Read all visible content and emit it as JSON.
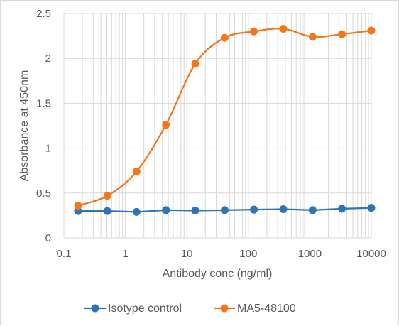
{
  "chart_data": {
    "type": "line",
    "title": "",
    "xlabel": "Antibody conc (ng/ml)",
    "ylabel": "Absorbance at 450nm",
    "x_scale": "log",
    "xlim": [
      0.1,
      10000
    ],
    "ylim": [
      0,
      2.5
    ],
    "x_ticks": [
      "0.1",
      "1",
      "10",
      "100",
      "1000",
      "10000"
    ],
    "y_ticks": [
      "0",
      "0.5",
      "1",
      "1.5",
      "2",
      "2.5"
    ],
    "grid": true,
    "legend_position": "bottom",
    "x": [
      0.17,
      0.51,
      1.52,
      4.57,
      13.7,
      41.2,
      123,
      370,
      1111,
      3333,
      10000
    ],
    "series": [
      {
        "name": "Isotype control",
        "color": "#2e75b6",
        "smooth": false,
        "values": [
          0.3,
          0.3,
          0.29,
          0.31,
          0.305,
          0.31,
          0.315,
          0.32,
          0.31,
          0.325,
          0.335
        ]
      },
      {
        "name": "MA5-48100",
        "color": "#f4761b",
        "smooth": true,
        "values": [
          0.36,
          0.47,
          0.74,
          1.26,
          1.94,
          2.23,
          2.3,
          2.33,
          2.24,
          2.27,
          2.31
        ]
      }
    ]
  }
}
